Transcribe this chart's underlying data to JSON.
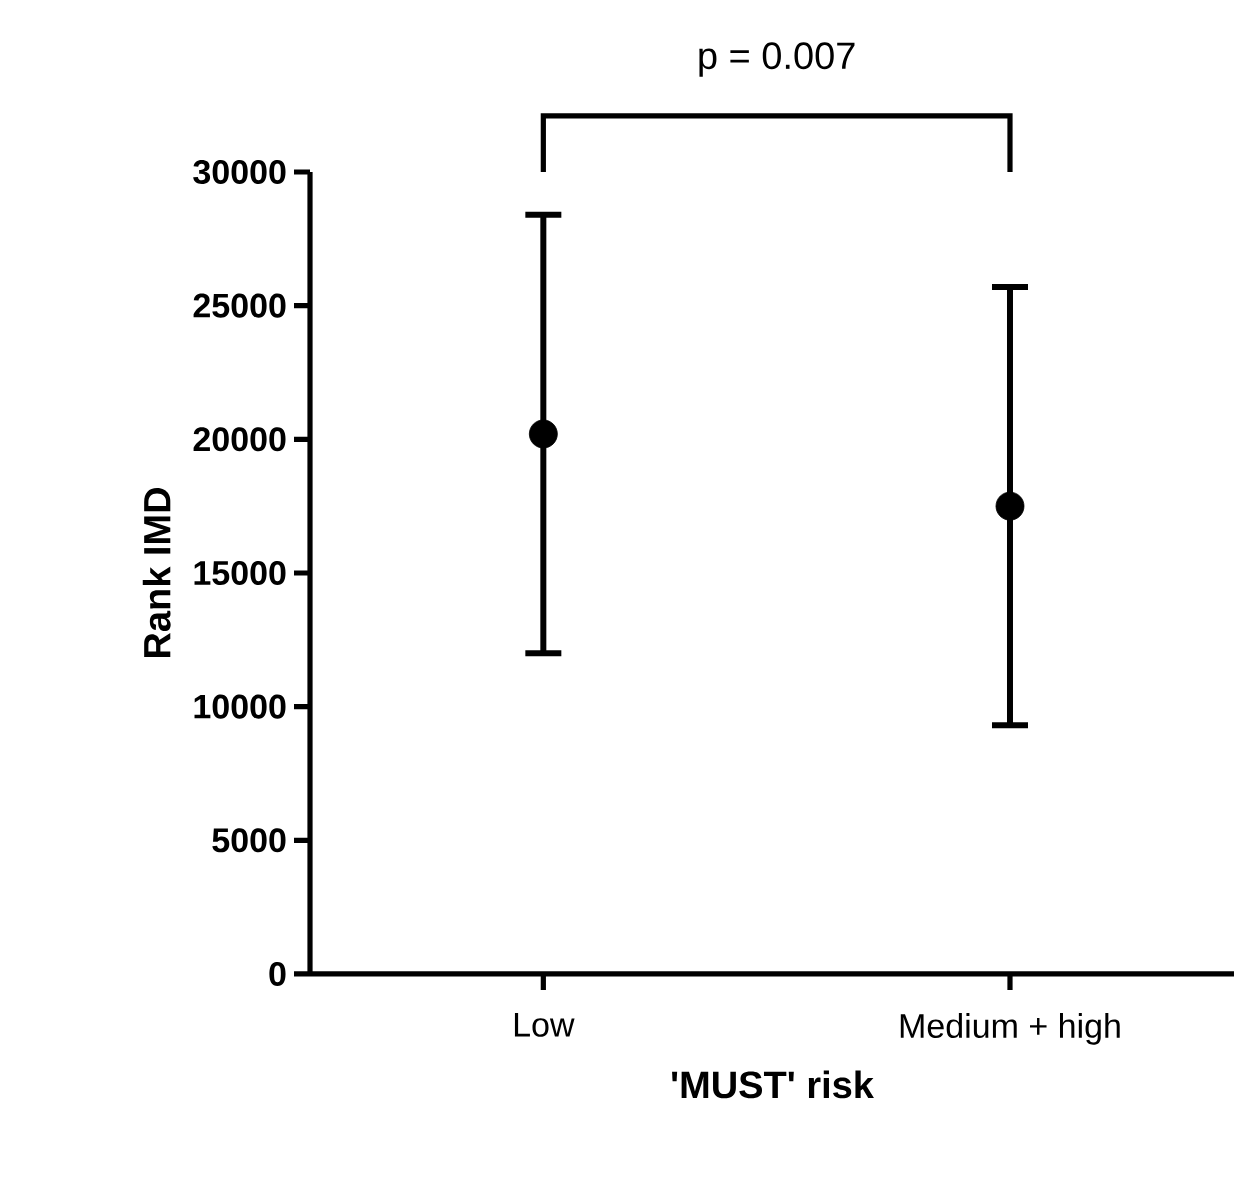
{
  "chart_data": {
    "type": "scatter",
    "categories": [
      "Low",
      "Medium + high"
    ],
    "series": [
      {
        "color": "#000000",
        "values": [
          20200,
          17500
        ],
        "errors": [
          8200,
          8200
        ]
      }
    ],
    "xlabel": "'MUST' risk",
    "ylabel": "Rank IMD",
    "ylim": [
      0,
      30000
    ],
    "yticks": [
      0,
      5000,
      10000,
      15000,
      20000,
      25000,
      30000
    ],
    "annotations": [
      "p = 0.007"
    ],
    "marker": "circle"
  }
}
